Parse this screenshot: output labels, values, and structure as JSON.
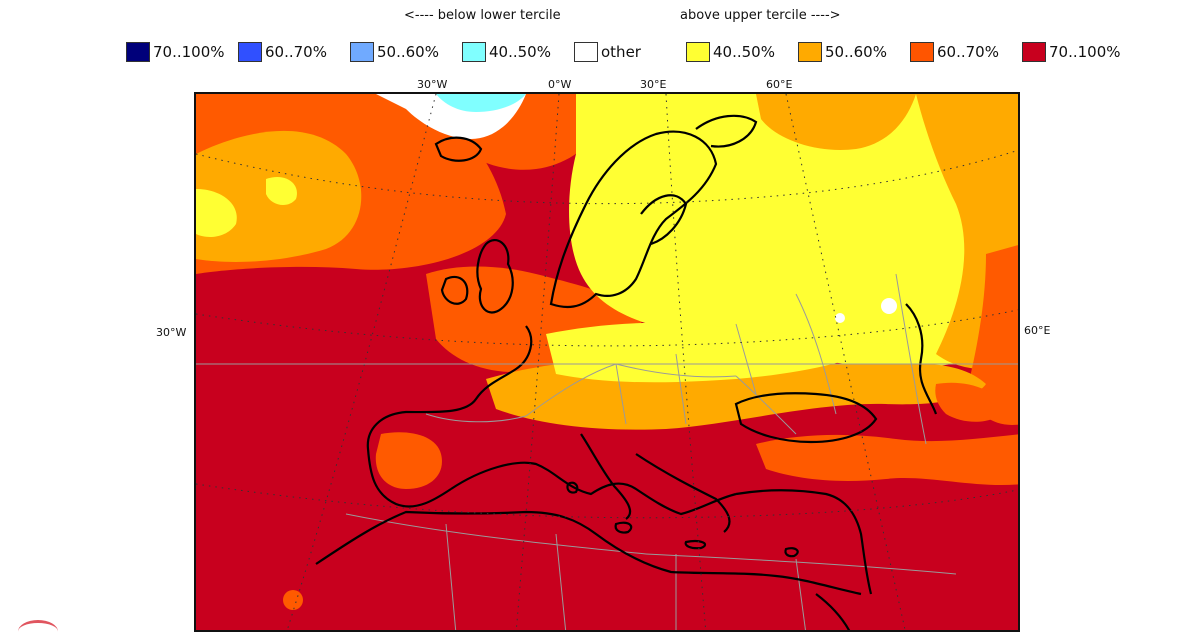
{
  "headers": {
    "below": "<---- below lower tercile",
    "above": "above upper tercile ---->"
  },
  "legend": [
    {
      "label": "70..100%",
      "color": "#00007a"
    },
    {
      "label": "60..70%",
      "color": "#3050ff"
    },
    {
      "label": "50..60%",
      "color": "#70aaff"
    },
    {
      "label": "40..50%",
      "color": "#80ffff"
    },
    {
      "label": "other",
      "color": "#ffffff"
    },
    {
      "label": "40..50%",
      "color": "#ffff33"
    },
    {
      "label": "50..60%",
      "color": "#ffaa00"
    },
    {
      "label": "60..70%",
      "color": "#ff5500"
    },
    {
      "label": "70..100%",
      "color": "#c8001e"
    }
  ],
  "map_labels": {
    "lon_top": [
      "30°W",
      "0°W",
      "30°E",
      "60°E"
    ],
    "lat_left": "30°W",
    "lat_right": "60°E"
  },
  "colors": {
    "dark_red": "#c8001e",
    "orange_red": "#ff5a00",
    "orange": "#ffaa00",
    "yellow": "#ffff33",
    "light_cyan": "#80ffff",
    "white": "#ffffff",
    "coastline": "#000000",
    "borders": "#9a9a9a",
    "graticule": "#333333"
  }
}
